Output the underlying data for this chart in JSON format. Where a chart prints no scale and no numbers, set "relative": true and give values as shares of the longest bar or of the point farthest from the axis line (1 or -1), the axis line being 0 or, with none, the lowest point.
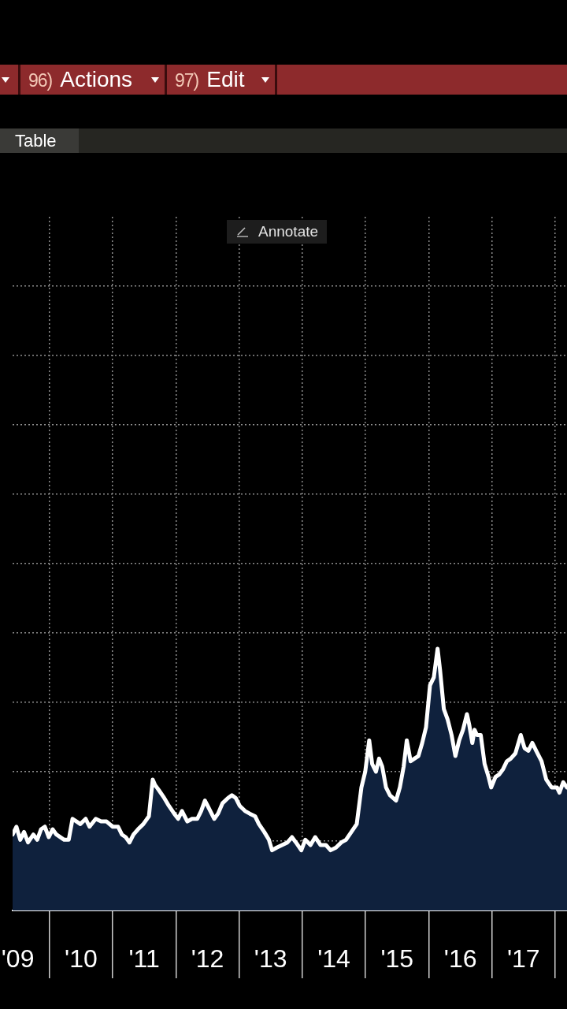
{
  "chart_data": {
    "type": "area",
    "relative": true,
    "color": "#0f213d",
    "grid": true,
    "marker": "none",
    "line_style": "solid",
    "xlim": [
      "2009-06-01",
      "2018-03-09"
    ],
    "xticks": [
      {
        "value": "2009-07-01",
        "label": "'09"
      },
      {
        "value": "2010-07-01",
        "label": "'10"
      },
      {
        "value": "2011-07-01",
        "label": "'11"
      },
      {
        "value": "2012-07-01",
        "label": "'12"
      },
      {
        "value": "2013-07-01",
        "label": "'13"
      },
      {
        "value": "2014-07-01",
        "label": "'14"
      },
      {
        "value": "2015-07-01",
        "label": "'15"
      },
      {
        "value": "2016-07-01",
        "label": "'16"
      },
      {
        "value": "2017-07-01",
        "label": "'17"
      }
    ],
    "x": [
      "2009-06-01",
      "2009-06-23",
      "2009-07-15",
      "2009-08-06",
      "2009-08-29",
      "2009-09-29",
      "2009-10-21",
      "2009-11-12",
      "2009-12-04",
      "2009-12-27",
      "2010-01-18",
      "2010-02-09",
      "2010-03-26",
      "2010-04-21",
      "2010-05-13",
      "2010-06-05",
      "2010-06-27",
      "2010-07-28",
      "2010-08-19",
      "2010-09-24",
      "2010-10-25",
      "2010-11-25",
      "2010-12-31",
      "2011-01-31",
      "2011-02-22",
      "2011-03-16",
      "2011-04-07",
      "2011-04-30",
      "2011-05-26",
      "2011-06-26",
      "2011-07-28",
      "2011-08-19",
      "2011-09-01",
      "2011-09-23",
      "2011-10-24",
      "2011-11-20",
      "2011-12-21",
      "2012-01-13",
      "2012-02-04",
      "2012-03-06",
      "2012-04-02",
      "2012-05-03",
      "2012-05-25",
      "2012-06-16",
      "2012-07-09",
      "2012-08-09",
      "2012-08-31",
      "2012-09-26",
      "2012-10-28",
      "2012-11-19",
      "2012-12-11",
      "2013-01-03",
      "2013-02-03",
      "2013-03-02",
      "2013-04-02",
      "2013-04-24",
      "2013-05-25",
      "2013-06-21",
      "2013-07-09",
      "2013-08-05",
      "2013-09-05",
      "2013-10-06",
      "2013-11-01",
      "2013-11-24",
      "2013-12-25",
      "2014-01-17",
      "2014-02-16",
      "2014-03-15",
      "2014-04-15",
      "2014-05-16",
      "2014-06-12",
      "2014-07-13",
      "2014-08-13",
      "2014-09-09",
      "2014-10-10",
      "2014-11-10",
      "2014-12-07",
      "2014-12-29",
      "2015-01-21",
      "2015-02-07",
      "2015-03-01",
      "2015-03-19",
      "2015-04-06",
      "2015-04-28",
      "2015-05-21",
      "2015-06-25",
      "2015-07-17",
      "2015-08-08",
      "2015-08-26",
      "2015-09-17",
      "2015-10-09",
      "2015-11-01",
      "2015-11-23",
      "2015-12-15",
      "2016-01-07",
      "2016-01-29",
      "2016-02-20",
      "2016-03-05",
      "2016-03-27",
      "2016-04-18",
      "2016-05-11",
      "2016-06-02",
      "2016-06-24",
      "2016-07-16",
      "2016-08-08",
      "2016-08-21",
      "2016-09-08",
      "2016-09-21",
      "2016-10-05",
      "2016-10-27",
      "2016-11-18",
      "2016-12-11",
      "2016-12-26",
      "2017-01-20",
      "2017-02-11",
      "2017-03-05",
      "2017-03-27",
      "2017-04-18",
      "2017-05-15",
      "2017-06-15",
      "2017-07-07",
      "2017-07-29",
      "2017-08-21",
      "2017-09-12",
      "2017-10-13",
      "2017-11-09",
      "2017-12-10",
      "2018-01-10",
      "2018-01-24",
      "2018-02-15",
      "2018-03-09"
    ],
    "values": [
      0.29,
      0.32,
      0.27,
      0.3,
      0.26,
      0.29,
      0.27,
      0.31,
      0.32,
      0.28,
      0.31,
      0.29,
      0.27,
      0.27,
      0.35,
      0.34,
      0.33,
      0.35,
      0.32,
      0.35,
      0.34,
      0.34,
      0.32,
      0.32,
      0.29,
      0.28,
      0.26,
      0.29,
      0.31,
      0.33,
      0.36,
      0.5,
      0.48,
      0.46,
      0.43,
      0.4,
      0.37,
      0.35,
      0.38,
      0.34,
      0.35,
      0.35,
      0.38,
      0.42,
      0.39,
      0.35,
      0.37,
      0.41,
      0.43,
      0.44,
      0.43,
      0.4,
      0.38,
      0.37,
      0.36,
      0.33,
      0.3,
      0.27,
      0.23,
      0.24,
      0.25,
      0.26,
      0.28,
      0.26,
      0.23,
      0.27,
      0.25,
      0.28,
      0.25,
      0.25,
      0.23,
      0.24,
      0.26,
      0.27,
      0.3,
      0.33,
      0.47,
      0.53,
      0.65,
      0.56,
      0.53,
      0.58,
      0.55,
      0.47,
      0.44,
      0.42,
      0.47,
      0.55,
      0.65,
      0.57,
      0.58,
      0.59,
      0.64,
      0.7,
      0.86,
      0.89,
      1,
      0.92,
      0.77,
      0.73,
      0.67,
      0.59,
      0.65,
      0.69,
      0.75,
      0.71,
      0.64,
      0.69,
      0.67,
      0.67,
      0.56,
      0.51,
      0.47,
      0.51,
      0.52,
      0.54,
      0.57,
      0.58,
      0.6,
      0.67,
      0.62,
      0.61,
      0.64,
      0.61,
      0.57,
      0.5,
      0.47,
      0.47,
      0.45,
      0.49,
      0.47
    ],
    "annotations": [
      "96) Actions",
      "97) Edit",
      "Table",
      "Annotate"
    ]
  }
}
